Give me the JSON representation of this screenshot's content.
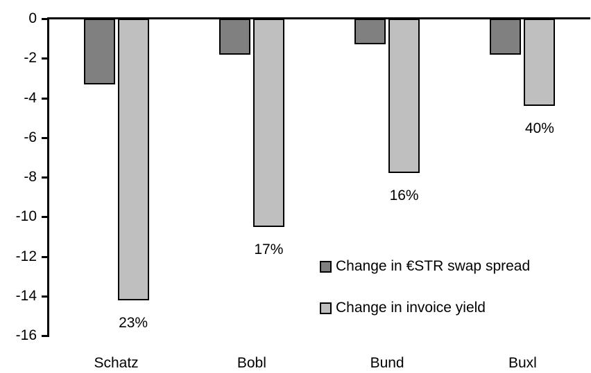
{
  "chart_data": {
    "type": "bar",
    "orientation": "vertical-negative",
    "title": "",
    "xlabel": "",
    "ylabel": "",
    "categories": [
      "Schatz",
      "Bobl",
      "Bund",
      "Buxl"
    ],
    "series": [
      {
        "name": "Change in €STR swap spread",
        "color": "#808080",
        "values": [
          -3.3,
          -1.8,
          -1.3,
          -1.8
        ]
      },
      {
        "name": "Change in invoice yield",
        "color": "#bfbfbf",
        "values": [
          -14.2,
          -10.5,
          -7.8,
          -4.4
        ]
      }
    ],
    "bar_labels": {
      "attached_to_series": "Change in invoice yield",
      "values": [
        "23%",
        "17%",
        "16%",
        "40%"
      ]
    },
    "yticks": [
      "0",
      "-2",
      "-4",
      "-6",
      "-8",
      "-10",
      "-12",
      "-14",
      "-16"
    ],
    "ylim": [
      -16,
      0
    ],
    "grid": false,
    "legend_position": "inside-right",
    "axis_color": "#000000",
    "bar_border_color": "#000000",
    "background_color": "#ffffff"
  }
}
